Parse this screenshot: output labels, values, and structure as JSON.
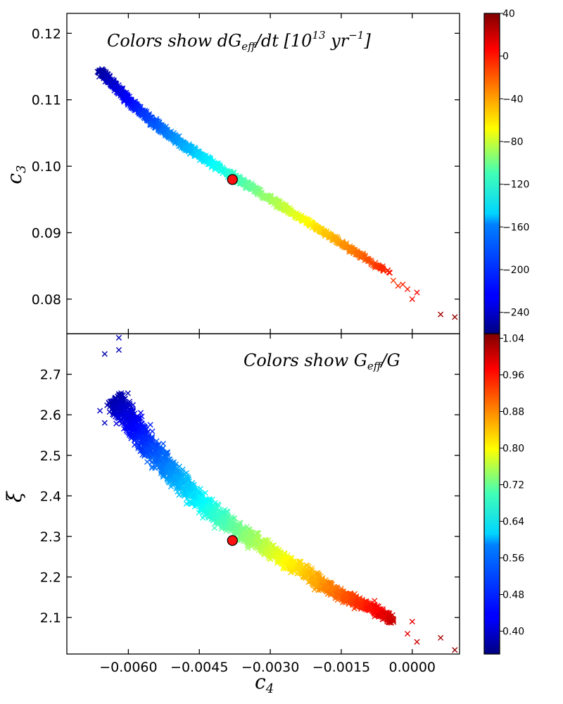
{
  "chart_data": [
    {
      "type": "scatter",
      "panel": "top",
      "title": "Colors show dG_eff/dt [10^13 yr^-1]",
      "xlabel": "c_4",
      "ylabel": "c_3",
      "xlim": [
        -0.0073,
        0.001
      ],
      "ylim": [
        0.0748,
        0.123
      ],
      "yticks": [
        0.08,
        0.09,
        0.1,
        0.11,
        0.12
      ],
      "ytick_labels": [
        "0.08",
        "0.09",
        "0.10",
        "0.11",
        "0.12"
      ],
      "colorbar": {
        "range": [
          -260,
          40
        ],
        "ticks": [
          -240,
          -200,
          -160,
          -120,
          -80,
          -40,
          0,
          40
        ],
        "tick_labels": [
          "−240",
          "−200",
          "−160",
          "−120",
          "−80",
          "−40",
          "0",
          "40"
        ]
      },
      "band": {
        "center": [
          [
            -0.0066,
            0.1144
          ],
          [
            -0.0058,
            0.1085
          ],
          [
            -0.005,
            0.104
          ],
          [
            -0.0042,
            0.1003
          ],
          [
            -0.0034,
            0.0968
          ],
          [
            -0.0026,
            0.0933
          ],
          [
            -0.0018,
            0.0898
          ],
          [
            -0.001,
            0.0862
          ],
          [
            -0.0004,
            0.0835
          ]
        ],
        "color_value_range": [
          -250,
          0
        ]
      },
      "points": [
        {
          "x": 0.0006,
          "y": 0.0777,
          "c": 30
        },
        {
          "x": 0.0009,
          "y": 0.0773,
          "c": 35
        },
        {
          "x": -0.0004,
          "y": 0.0828,
          "c": -15
        },
        {
          "x": -0.0003,
          "y": 0.082,
          "c": -10
        },
        {
          "x": -0.0001,
          "y": 0.0815,
          "c": -5
        },
        {
          "x": 0.0,
          "y": 0.08,
          "c": 0
        },
        {
          "x": 0.0001,
          "y": 0.081,
          "c": 0
        },
        {
          "x": -0.0002,
          "y": 0.0822,
          "c": -8
        }
      ],
      "highlight": {
        "x": -0.0038,
        "y": 0.098
      }
    },
    {
      "type": "scatter",
      "panel": "bottom",
      "title": "Colors show G_eff/G",
      "xlabel": "c_4",
      "ylabel": "ξ",
      "xlim": [
        -0.0073,
        0.001
      ],
      "ylim": [
        2.01,
        2.8
      ],
      "xticks": [
        -0.006,
        -0.0045,
        -0.003,
        -0.0015,
        0.0
      ],
      "xtick_labels": [
        "−0.0060",
        "−0.0045",
        "−0.0030",
        "−0.0015",
        "0.0000"
      ],
      "yticks": [
        2.1,
        2.2,
        2.3,
        2.4,
        2.5,
        2.6,
        2.7
      ],
      "ytick_labels": [
        "2.1",
        "2.2",
        "2.3",
        "2.4",
        "2.5",
        "2.6",
        "2.7"
      ],
      "colorbar": {
        "range": [
          0.35,
          1.05
        ],
        "ticks": [
          0.4,
          0.48,
          0.56,
          0.64,
          0.72,
          0.8,
          0.88,
          0.96,
          1.04
        ],
        "tick_labels": [
          "0.40",
          "0.48",
          "0.56",
          "0.64",
          "0.72",
          "0.80",
          "0.88",
          "0.96",
          "1.04"
        ]
      },
      "band": {
        "center": [
          [
            -0.0063,
            2.64
          ],
          [
            -0.0058,
            2.56
          ],
          [
            -0.0052,
            2.47
          ],
          [
            -0.0046,
            2.4
          ],
          [
            -0.004,
            2.34
          ],
          [
            -0.0032,
            2.28
          ],
          [
            -0.0024,
            2.22
          ],
          [
            -0.0016,
            2.16
          ],
          [
            -0.0008,
            2.12
          ],
          [
            -0.0004,
            2.09
          ]
        ],
        "color_value_range": [
          0.38,
          1.0
        ]
      },
      "points": [
        {
          "x": -0.0065,
          "y": 2.75,
          "c": 0.38
        },
        {
          "x": -0.0062,
          "y": 2.76,
          "c": 0.39
        },
        {
          "x": -0.0062,
          "y": 2.79,
          "c": 0.39
        },
        {
          "x": -0.0066,
          "y": 2.61,
          "c": 0.4
        },
        {
          "x": -0.0065,
          "y": 2.58,
          "c": 0.4
        },
        {
          "x": 0.0006,
          "y": 2.05,
          "c": 1.02
        },
        {
          "x": 0.0009,
          "y": 2.02,
          "c": 1.04
        },
        {
          "x": 0.0001,
          "y": 2.04,
          "c": 1.0
        },
        {
          "x": -0.0001,
          "y": 2.06,
          "c": 0.98
        },
        {
          "x": 0.0,
          "y": 2.09,
          "c": 0.98
        }
      ],
      "highlight": {
        "x": -0.0038,
        "y": 2.29
      }
    }
  ],
  "labels": {
    "top_title": "Colors  show  dG",
    "top_title_sub": "eff",
    "top_title_tail": "/dt  [10",
    "top_title_exp": "13",
    "top_title_unit": " yr",
    "top_title_unit_exp": "−1",
    "top_title_end": "]",
    "bottom_title": "Colors  show  G",
    "bottom_title_sub": "eff",
    "bottom_title_tail": "/G",
    "top_ylabel": "c",
    "top_ylabel_sub": "3",
    "bottom_ylabel": "ξ",
    "xlabel": "c",
    "xlabel_sub": "4"
  }
}
